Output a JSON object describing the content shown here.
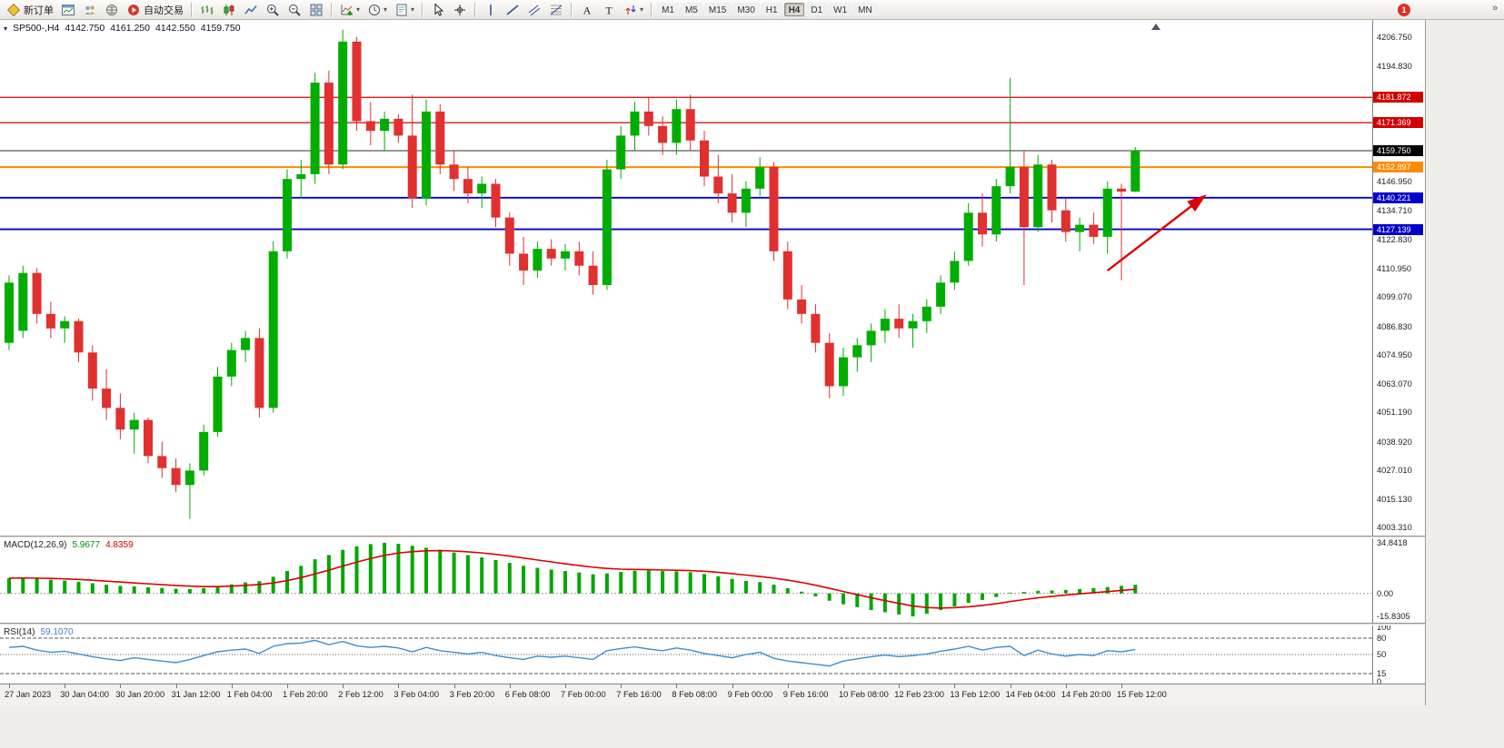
{
  "toolbar": {
    "new_order_label": "新订单",
    "auto_trading_label": "自动交易",
    "timeframes": [
      "M1",
      "M5",
      "M15",
      "M30",
      "H1",
      "H4",
      "D1",
      "W1",
      "MN"
    ],
    "active_timeframe": "H4",
    "notification_badge": "1",
    "overflow_glyph": "»",
    "icons": {
      "new-order-icon": "yellow-diamond",
      "chart-window-icon": "window-with-chart",
      "accounts-icon": "two-people",
      "community-icon": "globe",
      "auto-trading-icon": "red-play-circle",
      "bars-chart-icon": "ohlc-bars",
      "candlestick-chart-icon": "candles",
      "line-chart-icon": "poly-line",
      "zoom-in-icon": "magnifier-plus",
      "zoom-out-icon": "magnifier-minus",
      "tile-windows-icon": "window-grid",
      "add-indicator-icon": "chart-green-plus",
      "periods-icon": "clock",
      "templates-icon": "document-lines",
      "cursor-icon": "pointer-arrow",
      "crosshair-icon": "crosshair",
      "vertical-line-icon": "vertical-line",
      "trendline-icon": "diagonal-line",
      "channel-icon": "parallel-lines",
      "fibonacci-icon": "fibo-levels",
      "text-icon": "letter-A",
      "label-icon": "letter-T",
      "arrows-icon": "up-down-arrows",
      "symbol-dropdown-icon": "triangle-down",
      "chart-shift-icon": "triangle-up",
      "notification-badge": "red-circle"
    }
  },
  "chart_header": {
    "symbol_period": "SP500-,H4",
    "open": "4142.750",
    "high": "4161.250",
    "low": "4142.550",
    "close": "4159.750"
  },
  "indicators": {
    "macd": {
      "label": "MACD(12,26,9)",
      "main_value": "5.9677",
      "signal_value": "4.8359"
    },
    "rsi": {
      "label": "RSI(14)",
      "value": "59.1070"
    }
  },
  "time_axis": {
    "labels": [
      "27 Jan 2023",
      "30 Jan 04:00",
      "30 Jan 20:00",
      "31 Jan 12:00",
      "1 Feb 04:00",
      "1 Feb 20:00",
      "2 Feb 12:00",
      "3 Feb 04:00",
      "3 Feb 20:00",
      "6 Feb 08:00",
      "7 Feb 00:00",
      "7 Feb 16:00",
      "8 Feb 08:00",
      "9 Feb 00:00",
      "9 Feb 16:00",
      "10 Feb 08:00",
      "12 Feb 23:00",
      "13 Feb 12:00",
      "14 Feb 04:00",
      "14 Feb 20:00",
      "15 Feb 12:00"
    ]
  },
  "chart_data": [
    {
      "type": "candlestick",
      "title": "SP500- H4",
      "ylim": [
        4000,
        4214
      ],
      "up_color": "#00ad00",
      "down_color": "#e03030",
      "ohlc": [
        [
          4080,
          4108,
          4077,
          4105
        ],
        [
          4085,
          4112,
          4082,
          4109
        ],
        [
          4109,
          4111,
          4088,
          4092
        ],
        [
          4092,
          4097,
          4082,
          4086
        ],
        [
          4086,
          4091,
          4080,
          4089
        ],
        [
          4089,
          4090,
          4072,
          4076
        ],
        [
          4076,
          4079,
          4056,
          4061
        ],
        [
          4061,
          4069,
          4048,
          4053
        ],
        [
          4053,
          4059,
          4040,
          4044
        ],
        [
          4044,
          4051,
          4034,
          4048
        ],
        [
          4048,
          4049,
          4030,
          4033
        ],
        [
          4033,
          4039,
          4024,
          4028
        ],
        [
          4028,
          4032,
          4018,
          4021
        ],
        [
          4021,
          4030,
          4007,
          4027
        ],
        [
          4027,
          4046,
          4025,
          4043
        ],
        [
          4043,
          4070,
          4041,
          4066
        ],
        [
          4066,
          4080,
          4062,
          4077
        ],
        [
          4077,
          4085,
          4072,
          4082
        ],
        [
          4082,
          4086,
          4049,
          4053
        ],
        [
          4053,
          4122,
          4051,
          4118
        ],
        [
          4118,
          4152,
          4115,
          4148
        ],
        [
          4148,
          4156,
          4140,
          4150
        ],
        [
          4150,
          4192,
          4146,
          4188
        ],
        [
          4188,
          4193,
          4150,
          4154
        ],
        [
          4154,
          4210,
          4152,
          4205
        ],
        [
          4205,
          4207,
          4168,
          4172
        ],
        [
          4172,
          4180,
          4162,
          4168
        ],
        [
          4168,
          4176,
          4160,
          4173
        ],
        [
          4173,
          4175,
          4163,
          4166
        ],
        [
          4166,
          4183,
          4136,
          4140
        ],
        [
          4140,
          4181,
          4137,
          4176
        ],
        [
          4176,
          4179,
          4150,
          4154
        ],
        [
          4154,
          4160,
          4143,
          4148
        ],
        [
          4148,
          4153,
          4138,
          4142
        ],
        [
          4142,
          4149,
          4136,
          4146
        ],
        [
          4146,
          4148,
          4128,
          4132
        ],
        [
          4132,
          4134,
          4112,
          4117
        ],
        [
          4117,
          4124,
          4104,
          4110
        ],
        [
          4110,
          4122,
          4107,
          4119
        ],
        [
          4119,
          4123,
          4112,
          4115
        ],
        [
          4115,
          4121,
          4110,
          4118
        ],
        [
          4118,
          4122,
          4108,
          4112
        ],
        [
          4112,
          4118,
          4100,
          4104
        ],
        [
          4104,
          4156,
          4102,
          4152
        ],
        [
          4152,
          4170,
          4148,
          4166
        ],
        [
          4166,
          4180,
          4160,
          4176
        ],
        [
          4176,
          4182,
          4166,
          4170
        ],
        [
          4170,
          4174,
          4158,
          4163
        ],
        [
          4163,
          4181,
          4158,
          4177
        ],
        [
          4177,
          4183,
          4160,
          4164
        ],
        [
          4164,
          4168,
          4145,
          4149
        ],
        [
          4149,
          4158,
          4138,
          4142
        ],
        [
          4142,
          4150,
          4130,
          4134
        ],
        [
          4134,
          4147,
          4128,
          4144
        ],
        [
          4144,
          4157,
          4141,
          4153
        ],
        [
          4153,
          4155,
          4114,
          4118
        ],
        [
          4118,
          4122,
          4094,
          4098
        ],
        [
          4098,
          4104,
          4088,
          4092
        ],
        [
          4092,
          4096,
          4076,
          4080
        ],
        [
          4080,
          4084,
          4057,
          4062
        ],
        [
          4062,
          4078,
          4058,
          4074
        ],
        [
          4074,
          4082,
          4068,
          4079
        ],
        [
          4079,
          4088,
          4072,
          4085
        ],
        [
          4085,
          4094,
          4080,
          4090
        ],
        [
          4090,
          4096,
          4082,
          4086
        ],
        [
          4086,
          4092,
          4078,
          4089
        ],
        [
          4089,
          4098,
          4084,
          4095
        ],
        [
          4095,
          4108,
          4092,
          4105
        ],
        [
          4105,
          4118,
          4102,
          4114
        ],
        [
          4114,
          4138,
          4112,
          4134
        ],
        [
          4134,
          4142,
          4120,
          4125
        ],
        [
          4125,
          4148,
          4122,
          4145
        ],
        [
          4145,
          4190,
          4142,
          4153
        ],
        [
          4153,
          4160,
          4104,
          4128
        ],
        [
          4128,
          4158,
          4126,
          4154
        ],
        [
          4154,
          4156,
          4130,
          4135
        ],
        [
          4135,
          4140,
          4122,
          4126
        ],
        [
          4126,
          4132,
          4118,
          4129
        ],
        [
          4129,
          4134,
          4121,
          4124
        ],
        [
          4124,
          4147,
          4117,
          4144
        ],
        [
          4144,
          4146,
          4106,
          4142.75
        ],
        [
          4142.75,
          4161.25,
          4142.55,
          4159.75
        ]
      ],
      "grid_labels": [
        4206.75,
        4194.83,
        4146.95,
        4134.71,
        4122.83,
        4110.95,
        4099.07,
        4086.83,
        4074.95,
        4063.07,
        4051.19,
        4038.92,
        4027.01,
        4015.13,
        4003.31
      ],
      "hlines": [
        {
          "price": 4181.872,
          "color": "#d20000",
          "width": 1.2,
          "tag_bg": "#d20000",
          "role": "resistance-line"
        },
        {
          "price": 4171.369,
          "color": "#d20000",
          "width": 1.2,
          "tag_bg": "#d20000",
          "role": "resistance-line"
        },
        {
          "price": 4159.75,
          "color": "#333333",
          "width": 1,
          "tag_bg": "#000000",
          "role": "bid-line"
        },
        {
          "price": 4152.897,
          "color": "#ff8c00",
          "width": 2,
          "tag_bg": "#ff8c00",
          "role": "pivot-line"
        },
        {
          "price": 4140.221,
          "color": "#0000d0",
          "width": 1.8,
          "tag_bg": "#0000cc",
          "role": "support-line"
        },
        {
          "price": 4127.139,
          "color": "#0000d0",
          "width": 1.8,
          "tag_bg": "#0000cc",
          "role": "support-line"
        }
      ],
      "annotation_arrow": {
        "from_bar": 79,
        "from_price": 4110,
        "to_bar": 86,
        "to_price": 4141,
        "color": "#dd0000"
      }
    },
    {
      "type": "histogram+line",
      "name": "MACD(12,26,9)",
      "ylim": [
        -15.8305,
        34.8418
      ],
      "histogram_color": "#00a800",
      "signal_color": "#dd0000",
      "signal_period": 9,
      "histogram": [
        10.5,
        11.0,
        10.2,
        9.4,
        8.8,
        8.0,
        7.0,
        6.0,
        5.2,
        4.8,
        4.2,
        3.8,
        3.2,
        3.0,
        3.6,
        4.8,
        6.2,
        7.6,
        8.4,
        11.5,
        15.5,
        19.0,
        23.5,
        26.5,
        30.0,
        32.5,
        34.0,
        34.8418,
        34.2,
        32.8,
        31.5,
        30.0,
        28.2,
        26.4,
        24.8,
        23.0,
        21.0,
        19.0,
        17.6,
        16.4,
        15.4,
        14.4,
        13.2,
        13.8,
        14.8,
        15.6,
        15.8,
        15.4,
        15.2,
        14.6,
        13.4,
        11.8,
        10.0,
        8.6,
        7.8,
        6.0,
        3.6,
        1.2,
        -2.0,
        -5.0,
        -7.5,
        -9.5,
        -11.5,
        -13.0,
        -14.5,
        -15.8305,
        -14.0,
        -11.5,
        -9.0,
        -6.5,
        -4.5,
        -2.5,
        0.5,
        1.0,
        1.8,
        2.0,
        2.4,
        3.0,
        3.6,
        4.4,
        5.2,
        5.9677
      ],
      "scale_labels": [
        {
          "value": 34.8418,
          "label": "34.8418"
        },
        {
          "value": 0,
          "label": "0.00"
        },
        {
          "value": -15.8305,
          "label": "-15.8305"
        }
      ]
    },
    {
      "type": "line",
      "name": "RSI(14)",
      "ylim": [
        0,
        100
      ],
      "line_color": "#3e8ed0",
      "levels": [
        80,
        50,
        15
      ],
      "values": [
        63,
        65,
        58,
        54,
        56,
        51,
        46,
        42,
        39,
        44,
        41,
        38,
        35,
        41,
        48,
        55,
        58,
        60,
        52,
        65,
        70,
        71,
        76,
        68,
        74,
        66,
        63,
        65,
        62,
        55,
        63,
        57,
        54,
        51,
        54,
        48,
        44,
        41,
        47,
        45,
        47,
        44,
        41,
        57,
        61,
        64,
        60,
        57,
        62,
        58,
        52,
        48,
        44,
        50,
        54,
        43,
        38,
        35,
        32,
        29,
        38,
        42,
        46,
        49,
        46,
        48,
        51,
        56,
        60,
        65,
        58,
        63,
        65,
        48,
        58,
        51,
        47,
        50,
        48,
        57,
        55,
        59.107
      ],
      "scale_labels": [
        {
          "value": 100,
          "label": "100"
        },
        {
          "value": 80,
          "label": "80"
        },
        {
          "value": 50,
          "label": "50"
        },
        {
          "value": 15,
          "label": "15"
        },
        {
          "value": 0,
          "label": "0"
        }
      ]
    }
  ],
  "colors": {
    "up": "#00ad00",
    "down": "#e03030",
    "resistance": "#d20000",
    "pivot": "#ff8c00",
    "support": "#0000cc",
    "bid_tag": "#000000",
    "macd_histogram": "#00a800",
    "macd_signal": "#dd0000",
    "rsi_line": "#3e8ed0",
    "arrow": "#dd0000"
  }
}
